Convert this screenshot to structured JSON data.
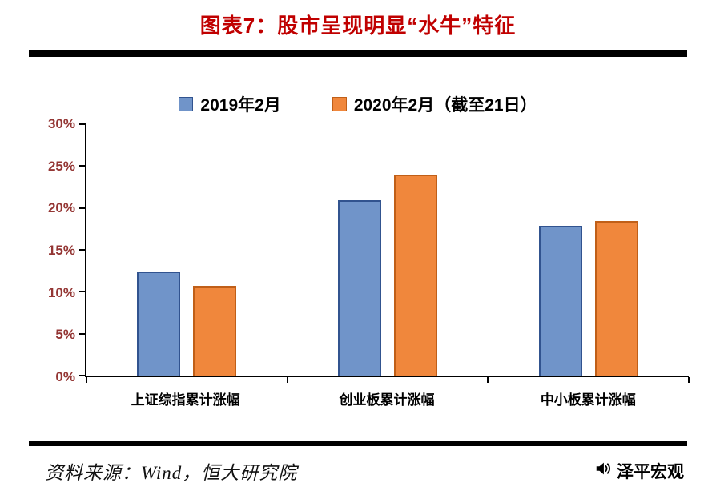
{
  "title": "图表7：股市呈现明显“水牛”特征",
  "source": "资料来源：Wind，恒大研究院",
  "brand": "泽平宏观",
  "colors": {
    "title": "#C00000",
    "y_axis_label": "#943634",
    "category_label": "#000000",
    "rule": "#000000",
    "series1_fill": "#7094C9",
    "series1_border": "#31538F",
    "series2_fill": "#F0873C",
    "series2_border": "#C05F18"
  },
  "chart_data": {
    "type": "bar",
    "title": "图表7：股市呈现明显“水牛”特征",
    "categories": [
      "上证综指累计涨幅",
      "创业板累计涨幅",
      "中小板累计涨幅"
    ],
    "series": [
      {
        "name": "2019年2月",
        "values": [
          12.4,
          20.9,
          17.9
        ],
        "color": "#7094C9",
        "border": "#31538F"
      },
      {
        "name": "2020年2月（截至21日）",
        "values": [
          10.7,
          24.0,
          18.4
        ],
        "color": "#F0873C",
        "border": "#C05F18"
      }
    ],
    "xlabel": "",
    "ylabel": "",
    "ylim": [
      0,
      30
    ],
    "ytick_step": 5,
    "ytick_suffix": "%",
    "grid": false,
    "legend_position": "top"
  }
}
